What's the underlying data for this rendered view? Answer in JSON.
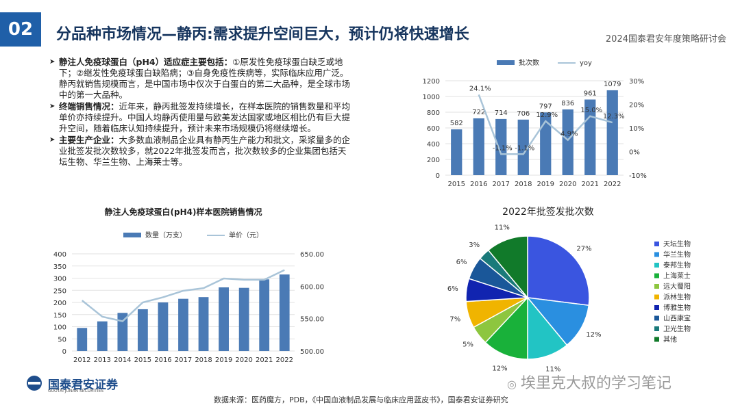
{
  "header": {
    "section_number": "02",
    "title": "分品种市场情况—静丙:需求提升空间巨大，预计仍将快速增长",
    "conference": "2024国泰君安年度策略研讨会"
  },
  "bullets": [
    {
      "lead": "静注人免疫球蛋白（pH4）适应症主要包括：",
      "body": "①原发性免疫球蛋白缺乏或地下；②继发性免疫球蛋白缺陷病；③自身免疫性疾病等，实际临床应用广泛。静丙就销售规模而言，是中国市场中仅次于白蛋白的第二大品种，是全球市场中的第一大品种。"
    },
    {
      "lead": "终端销售情况：",
      "body": "近年来，静丙批签发持续增长，在样本医院的销售数量和平均单价亦持续提升。中国人均静丙使用量与欧美发达国家或地区相比仍有巨大提升空间，随着临床认知持续提升，预计未来市场规模仍将继续增长。"
    },
    {
      "lead": "主要生产企业：",
      "body": "大多数血液制品企业具有静丙生产能力和批文，采浆量多的企业批签发批次数较多，就2022年批签发而言，批次数较多的企业集团包括天坛生物、华兰生物、上海莱士等。"
    }
  ],
  "footer": {
    "logo_name": "国泰君安证券",
    "logo_sub": "GUOTAI JUNAN SECURITIES",
    "source": "数据来源：医药魔方，PDB，《中国血液制品发展与临床应用蓝皮书》，国泰君安证券研究",
    "watermark": "埃里克大叔的学习笔记"
  },
  "chart_data": [
    {
      "type": "bar",
      "title": "",
      "categories": [
        "2015",
        "2016",
        "2017",
        "2018",
        "2019",
        "2020",
        "2021",
        "2022"
      ],
      "series": [
        {
          "name": "批次数",
          "kind": "bar",
          "axis": "left",
          "values": [
            582,
            722,
            714,
            706,
            797,
            836,
            961,
            1079
          ],
          "color": "#4a7ab5"
        },
        {
          "name": "yoy",
          "kind": "line",
          "axis": "right",
          "values": [
            null,
            24.1,
            -1.1,
            -1.1,
            12.9,
            4.9,
            15.0,
            12.3
          ],
          "labels": [
            "",
            "24.1%",
            "-1.1%",
            "-1.1%",
            "12.9%",
            "4.9%",
            "15.0%",
            "12.3%"
          ],
          "color": "#a9c4d8"
        }
      ],
      "ylim_left": [
        0,
        1200
      ],
      "yticks_left": [
        "0",
        "200",
        "400",
        "600",
        "800",
        "1000",
        "1200"
      ],
      "ylim_right": [
        -10,
        30
      ],
      "yticks_right": [
        "-10%",
        "0%",
        "10%",
        "20%",
        "30%"
      ],
      "legend": "top"
    },
    {
      "type": "bar",
      "title": "静注人免疫球蛋白(pH4)样本医院销售情况",
      "categories": [
        "2012",
        "2013",
        "2014",
        "2015",
        "2016",
        "2017",
        "2018",
        "2019",
        "2020",
        "2021",
        "2022"
      ],
      "series": [
        {
          "name": "数量（万支）",
          "kind": "bar",
          "axis": "left",
          "values": [
            95,
            122,
            157,
            172,
            200,
            215,
            222,
            262,
            260,
            295,
            315
          ],
          "color": "#4a7ab5"
        },
        {
          "name": "单价（元）",
          "kind": "line",
          "axis": "right",
          "values": [
            578,
            553,
            546,
            575,
            583,
            593,
            597,
            612,
            610,
            610,
            625
          ],
          "color": "#a9c4d8"
        }
      ],
      "ylim_left": [
        0,
        400
      ],
      "yticks_left": [
        "0",
        "50",
        "100",
        "150",
        "200",
        "250",
        "300",
        "350",
        "400"
      ],
      "ylim_right": [
        500,
        650
      ],
      "yticks_right": [
        "500.00",
        "550.00",
        "600.00",
        "650.00"
      ],
      "legend": "top"
    },
    {
      "type": "pie",
      "title": "2022年批签发批次数",
      "slices": [
        {
          "label": "天坛生物",
          "value": 27,
          "text": "27%",
          "color": "#3a55e0"
        },
        {
          "label": "华兰生物",
          "value": 12,
          "text": "12%",
          "color": "#2a8fe0"
        },
        {
          "label": "泰邦生物",
          "value": 11,
          "text": "11%",
          "color": "#22c4c4"
        },
        {
          "label": "上海莱士",
          "value": 12,
          "text": "12%",
          "color": "#19b13a"
        },
        {
          "label": "远大蜀阳",
          "value": 5,
          "text": "5%",
          "color": "#8dc63f"
        },
        {
          "label": "派林生物",
          "value": 7,
          "text": "7%",
          "color": "#f0b400"
        },
        {
          "label": "博雅生物",
          "value": 6,
          "text": "6%",
          "color": "#1124b0"
        },
        {
          "label": "山西康宝",
          "value": 6,
          "text": "6%",
          "color": "#1a5799"
        },
        {
          "label": "卫光生物",
          "value": 3,
          "text": "3%",
          "color": "#1a7a7a"
        },
        {
          "label": "其他",
          "value": 11,
          "text": "11%",
          "color": "#117a2a"
        }
      ],
      "legend": "right"
    }
  ]
}
